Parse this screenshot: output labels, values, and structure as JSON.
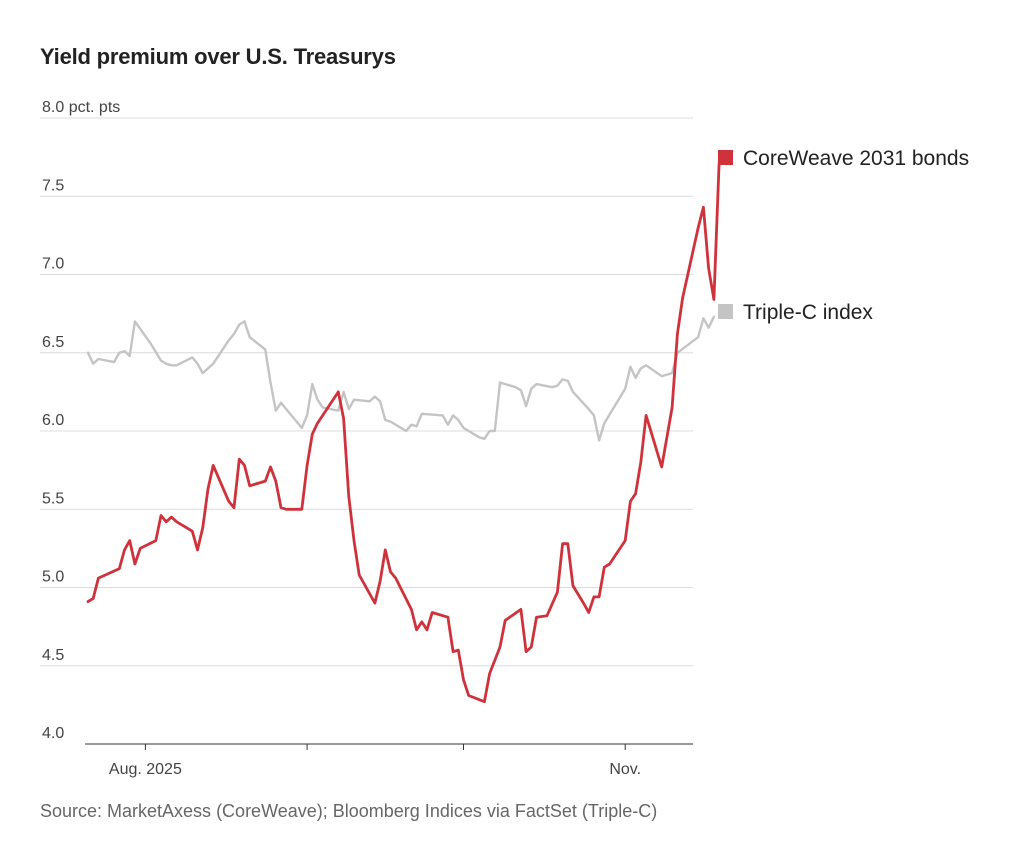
{
  "title": "Yield premium over U.S. Treasurys",
  "source": "Source: MarketAxess (CoreWeave); Bloomberg Indices via FactSet (Triple-C)",
  "chart_data": {
    "type": "line",
    "title": "Yield premium over U.S. Treasurys",
    "ylabel": "pct. pts",
    "ylim": [
      4.0,
      8.0
    ],
    "yticks": [
      4.0,
      4.5,
      5.0,
      5.5,
      6.0,
      6.5,
      7.0,
      7.5,
      8.0
    ],
    "ytick_labels": [
      "4.0",
      "4.5",
      "5.0",
      "5.5",
      "6.0",
      "6.5",
      "7.0",
      "7.5",
      "8.0 pct. pts"
    ],
    "xlim": [
      "2025-07-21",
      "2025-11-14"
    ],
    "xtick_dates": [
      "2025-08-01",
      "2025-09-01",
      "2025-10-01",
      "2025-11-01"
    ],
    "xtick_labels": [
      "Aug. 2025",
      "",
      "",
      "Nov."
    ],
    "grid": true,
    "legend_position": "right",
    "series": [
      {
        "name": "CoreWeave 2031 bonds",
        "color": "#d0323c",
        "points": [
          [
            "2025-07-21",
            4.91
          ],
          [
            "2025-07-22",
            4.93
          ],
          [
            "2025-07-23",
            5.06
          ],
          [
            "2025-07-25",
            5.09
          ],
          [
            "2025-07-27",
            5.12
          ],
          [
            "2025-07-28",
            5.24
          ],
          [
            "2025-07-29",
            5.3
          ],
          [
            "2025-07-30",
            5.15
          ],
          [
            "2025-07-31",
            5.25
          ],
          [
            "2025-08-03",
            5.3
          ],
          [
            "2025-08-04",
            5.46
          ],
          [
            "2025-08-05",
            5.42
          ],
          [
            "2025-08-06",
            5.45
          ],
          [
            "2025-08-07",
            5.42
          ],
          [
            "2025-08-10",
            5.36
          ],
          [
            "2025-08-11",
            5.24
          ],
          [
            "2025-08-12",
            5.38
          ],
          [
            "2025-08-13",
            5.63
          ],
          [
            "2025-08-14",
            5.78
          ],
          [
            "2025-08-17",
            5.55
          ],
          [
            "2025-08-18",
            5.51
          ],
          [
            "2025-08-19",
            5.82
          ],
          [
            "2025-08-20",
            5.78
          ],
          [
            "2025-08-21",
            5.65
          ],
          [
            "2025-08-24",
            5.68
          ],
          [
            "2025-08-25",
            5.77
          ],
          [
            "2025-08-26",
            5.68
          ],
          [
            "2025-08-27",
            5.51
          ],
          [
            "2025-08-28",
            5.5
          ],
          [
            "2025-08-31",
            5.5
          ],
          [
            "2025-09-01",
            5.78
          ],
          [
            "2025-09-02",
            5.98
          ],
          [
            "2025-09-03",
            6.05
          ],
          [
            "2025-09-04",
            6.1
          ],
          [
            "2025-09-07",
            6.25
          ],
          [
            "2025-09-08",
            6.08
          ],
          [
            "2025-09-09",
            5.58
          ],
          [
            "2025-09-10",
            5.3
          ],
          [
            "2025-09-11",
            5.08
          ],
          [
            "2025-09-14",
            4.9
          ],
          [
            "2025-09-15",
            5.04
          ],
          [
            "2025-09-16",
            5.24
          ],
          [
            "2025-09-17",
            5.1
          ],
          [
            "2025-09-18",
            5.06
          ],
          [
            "2025-09-21",
            4.86
          ],
          [
            "2025-09-22",
            4.73
          ],
          [
            "2025-09-23",
            4.78
          ],
          [
            "2025-09-24",
            4.73
          ],
          [
            "2025-09-25",
            4.84
          ],
          [
            "2025-09-28",
            4.81
          ],
          [
            "2025-09-29",
            4.59
          ],
          [
            "2025-09-30",
            4.6
          ],
          [
            "2025-10-01",
            4.41
          ],
          [
            "2025-10-02",
            4.31
          ],
          [
            "2025-10-05",
            4.27
          ],
          [
            "2025-10-06",
            4.45
          ],
          [
            "2025-10-08",
            4.62
          ],
          [
            "2025-10-09",
            4.79
          ],
          [
            "2025-10-12",
            4.86
          ],
          [
            "2025-10-13",
            4.59
          ],
          [
            "2025-10-14",
            4.62
          ],
          [
            "2025-10-15",
            4.81
          ],
          [
            "2025-10-17",
            4.82
          ],
          [
            "2025-10-19",
            4.97
          ],
          [
            "2025-10-20",
            5.28
          ],
          [
            "2025-10-21",
            5.28
          ],
          [
            "2025-10-22",
            5.01
          ],
          [
            "2025-10-24",
            4.9
          ],
          [
            "2025-10-25",
            4.84
          ],
          [
            "2025-10-26",
            4.94
          ],
          [
            "2025-10-27",
            4.94
          ],
          [
            "2025-10-28",
            5.13
          ],
          [
            "2025-10-29",
            5.15
          ],
          [
            "2025-11-01",
            5.3
          ],
          [
            "2025-11-02",
            5.55
          ],
          [
            "2025-11-03",
            5.6
          ],
          [
            "2025-11-04",
            5.8
          ],
          [
            "2025-11-05",
            6.1
          ],
          [
            "2025-11-08",
            5.77
          ],
          [
            "2025-11-10",
            6.15
          ],
          [
            "2025-11-11",
            6.62
          ],
          [
            "2025-11-12",
            6.85
          ],
          [
            "2025-11-15",
            7.3
          ],
          [
            "2025-11-16",
            7.43
          ],
          [
            "2025-11-17",
            7.04
          ],
          [
            "2025-11-18",
            6.84
          ],
          [
            "2025-11-19",
            7.71
          ]
        ]
      },
      {
        "name": "Triple-C index",
        "color": "#c4c4c4",
        "points": [
          [
            "2025-07-21",
            6.5
          ],
          [
            "2025-07-22",
            6.43
          ],
          [
            "2025-07-23",
            6.46
          ],
          [
            "2025-07-26",
            6.44
          ],
          [
            "2025-07-27",
            6.5
          ],
          [
            "2025-07-28",
            6.51
          ],
          [
            "2025-07-29",
            6.48
          ],
          [
            "2025-07-30",
            6.7
          ],
          [
            "2025-08-02",
            6.56
          ],
          [
            "2025-08-04",
            6.45
          ],
          [
            "2025-08-05",
            6.43
          ],
          [
            "2025-08-06",
            6.42
          ],
          [
            "2025-08-07",
            6.42
          ],
          [
            "2025-08-10",
            6.47
          ],
          [
            "2025-08-11",
            6.43
          ],
          [
            "2025-08-12",
            6.37
          ],
          [
            "2025-08-14",
            6.43
          ],
          [
            "2025-08-17",
            6.58
          ],
          [
            "2025-08-18",
            6.62
          ],
          [
            "2025-08-19",
            6.68
          ],
          [
            "2025-08-20",
            6.7
          ],
          [
            "2025-08-21",
            6.6
          ],
          [
            "2025-08-24",
            6.52
          ],
          [
            "2025-08-25",
            6.31
          ],
          [
            "2025-08-26",
            6.13
          ],
          [
            "2025-08-27",
            6.18
          ],
          [
            "2025-08-28",
            6.14
          ],
          [
            "2025-08-31",
            6.02
          ],
          [
            "2025-09-01",
            6.1
          ],
          [
            "2025-09-02",
            6.3
          ],
          [
            "2025-09-03",
            6.2
          ],
          [
            "2025-09-04",
            6.15
          ],
          [
            "2025-09-07",
            6.13
          ],
          [
            "2025-09-08",
            6.25
          ],
          [
            "2025-09-09",
            6.14
          ],
          [
            "2025-09-10",
            6.2
          ],
          [
            "2025-09-13",
            6.19
          ],
          [
            "2025-09-14",
            6.22
          ],
          [
            "2025-09-15",
            6.19
          ],
          [
            "2025-09-16",
            6.07
          ],
          [
            "2025-09-17",
            6.06
          ],
          [
            "2025-09-20",
            6.0
          ],
          [
            "2025-09-21",
            6.04
          ],
          [
            "2025-09-22",
            6.03
          ],
          [
            "2025-09-23",
            6.11
          ],
          [
            "2025-09-27",
            6.1
          ],
          [
            "2025-09-28",
            6.04
          ],
          [
            "2025-09-29",
            6.1
          ],
          [
            "2025-09-30",
            6.07
          ],
          [
            "2025-10-01",
            6.02
          ],
          [
            "2025-10-04",
            5.96
          ],
          [
            "2025-10-05",
            5.95
          ],
          [
            "2025-10-06",
            6.0
          ],
          [
            "2025-10-07",
            6.0
          ],
          [
            "2025-10-08",
            6.31
          ],
          [
            "2025-10-11",
            6.28
          ],
          [
            "2025-10-12",
            6.26
          ],
          [
            "2025-10-13",
            6.16
          ],
          [
            "2025-10-14",
            6.27
          ],
          [
            "2025-10-15",
            6.3
          ],
          [
            "2025-10-18",
            6.28
          ],
          [
            "2025-10-19",
            6.29
          ],
          [
            "2025-10-20",
            6.33
          ],
          [
            "2025-10-21",
            6.32
          ],
          [
            "2025-10-22",
            6.25
          ],
          [
            "2025-10-25",
            6.14
          ],
          [
            "2025-10-26",
            6.1
          ],
          [
            "2025-10-27",
            5.94
          ],
          [
            "2025-10-28",
            6.05
          ],
          [
            "2025-11-01",
            6.27
          ],
          [
            "2025-11-02",
            6.41
          ],
          [
            "2025-11-03",
            6.34
          ],
          [
            "2025-11-04",
            6.4
          ],
          [
            "2025-11-05",
            6.42
          ],
          [
            "2025-11-08",
            6.35
          ],
          [
            "2025-11-10",
            6.37
          ],
          [
            "2025-11-11",
            6.5
          ],
          [
            "2025-11-15",
            6.6
          ],
          [
            "2025-11-16",
            6.72
          ],
          [
            "2025-11-17",
            6.66
          ],
          [
            "2025-11-18",
            6.73
          ]
        ]
      }
    ]
  }
}
